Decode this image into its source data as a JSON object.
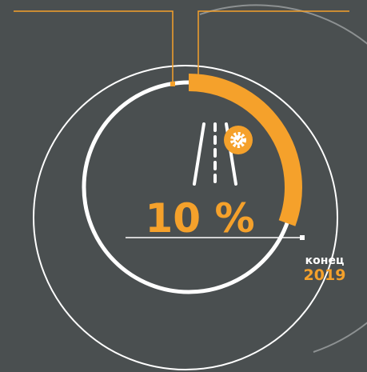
{
  "value_text": "10 %",
  "caption": "конец",
  "year": "2019"
}
